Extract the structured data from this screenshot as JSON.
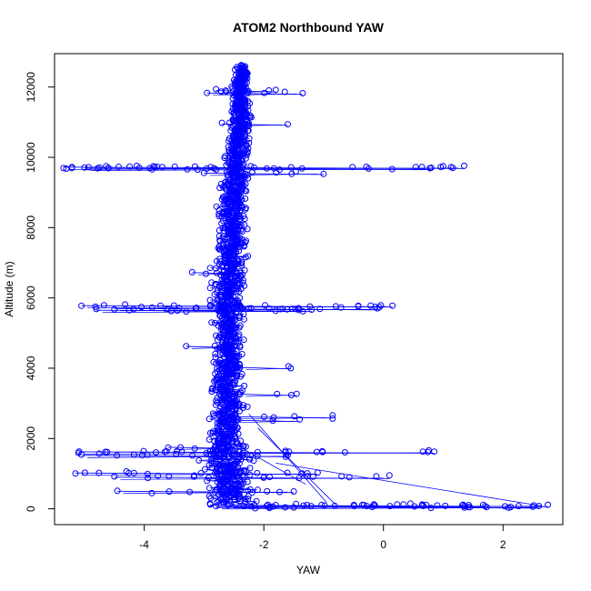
{
  "chart_data": {
    "type": "scatter",
    "title": "ATOM2 Northbound YAW",
    "xlabel": "YAW",
    "ylabel": "Altitude (m)",
    "xlim": [
      -5.5,
      3.0
    ],
    "ylim": [
      -450,
      12950
    ],
    "x_ticks": [
      -4,
      -2,
      0,
      2
    ],
    "x_tick_labels": [
      "-4",
      "-2",
      "0",
      "2"
    ],
    "y_ticks": [
      0,
      2000,
      4000,
      6000,
      8000,
      10000,
      12000
    ],
    "y_tick_labels": [
      "0",
      "2000",
      "4000",
      "6000",
      "8000",
      "10000",
      "12000"
    ],
    "grid": false,
    "legend": "none",
    "series_style": "points-and-lines, open circles",
    "color": "#0000ff",
    "series": [
      {
        "core_profile": [
          {
            "y": 150,
            "x": -2.55,
            "spread": 0.75
          },
          {
            "y": 500,
            "x": -2.6,
            "spread": 0.7
          },
          {
            "y": 1000,
            "x": -2.65,
            "spread": 0.65
          },
          {
            "y": 1500,
            "x": -2.65,
            "spread": 0.55
          },
          {
            "y": 2000,
            "x": -2.65,
            "spread": 0.45
          },
          {
            "y": 3000,
            "x": -2.6,
            "spread": 0.4
          },
          {
            "y": 4000,
            "x": -2.6,
            "spread": 0.4
          },
          {
            "y": 5000,
            "x": -2.6,
            "spread": 0.38
          },
          {
            "y": 6000,
            "x": -2.6,
            "spread": 0.4
          },
          {
            "y": 7000,
            "x": -2.55,
            "spread": 0.4
          },
          {
            "y": 8000,
            "x": -2.55,
            "spread": 0.38
          },
          {
            "y": 9000,
            "x": -2.5,
            "spread": 0.35
          },
          {
            "y": 10000,
            "x": -2.45,
            "spread": 0.32
          },
          {
            "y": 11000,
            "x": -2.4,
            "spread": 0.3
          },
          {
            "y": 12000,
            "x": -2.4,
            "spread": 0.25
          },
          {
            "y": 12600,
            "x": -2.35,
            "spread": 0.15
          }
        ],
        "excursions": [
          {
            "y": 9720,
            "x_min": -5.35,
            "x_max": 1.35
          },
          {
            "y": 9690,
            "x_min": -5.0,
            "x_max": 0.8
          },
          {
            "y": 9550,
            "x_min": -3.0,
            "x_max": -1.0
          },
          {
            "y": 5780,
            "x_min": -5.05,
            "x_max": 0.15
          },
          {
            "y": 5700,
            "x_min": -4.5,
            "x_max": -0.1
          },
          {
            "y": 5650,
            "x_min": -4.8,
            "x_max": -1.2
          },
          {
            "y": 1620,
            "x_min": -5.1,
            "x_max": 0.85
          },
          {
            "y": 1520,
            "x_min": -5.05,
            "x_max": -1.6
          },
          {
            "y": 1020,
            "x_min": -5.15,
            "x_max": -1.1
          },
          {
            "y": 900,
            "x_min": -4.5,
            "x_max": 0.1
          },
          {
            "y": 500,
            "x_min": -4.45,
            "x_max": -1.5
          },
          {
            "y": 100,
            "x_min": -2.9,
            "x_max": 2.75
          },
          {
            "y": 60,
            "x_min": -2.8,
            "x_max": 2.6
          },
          {
            "y": 90,
            "x_min": -2.6,
            "x_max": 1.7
          },
          {
            "y": 11830,
            "x_min": -2.95,
            "x_max": -1.35
          },
          {
            "y": 11900,
            "x_min": -2.8,
            "x_max": -1.8
          },
          {
            "y": 10950,
            "x_min": -2.7,
            "x_max": -1.6
          },
          {
            "y": 2620,
            "x_min": -2.55,
            "x_max": -0.85
          },
          {
            "y": 2520,
            "x_min": -2.5,
            "x_max": -1.4
          },
          {
            "y": 3260,
            "x_min": -2.4,
            "x_max": -1.45
          },
          {
            "y": 4020,
            "x_min": -2.4,
            "x_max": -1.55
          },
          {
            "y": 4620,
            "x_min": -3.3,
            "x_max": -2.4
          },
          {
            "y": 6720,
            "x_min": -3.2,
            "x_max": -2.4
          },
          {
            "y": 1750,
            "x_min": -3.6,
            "x_max": -2.3
          }
        ],
        "diagonal_segments": [
          {
            "x1": -2.25,
            "y1": 2700,
            "x2": -0.95,
            "y2": 180
          },
          {
            "x1": -2.1,
            "y1": 2300,
            "x2": -0.8,
            "y2": 120
          },
          {
            "x1": -2.6,
            "y1": 1950,
            "x2": -1.3,
            "y2": 700
          },
          {
            "x1": -1.8,
            "y1": 1300,
            "x2": 2.65,
            "y2": 80
          }
        ]
      }
    ]
  }
}
